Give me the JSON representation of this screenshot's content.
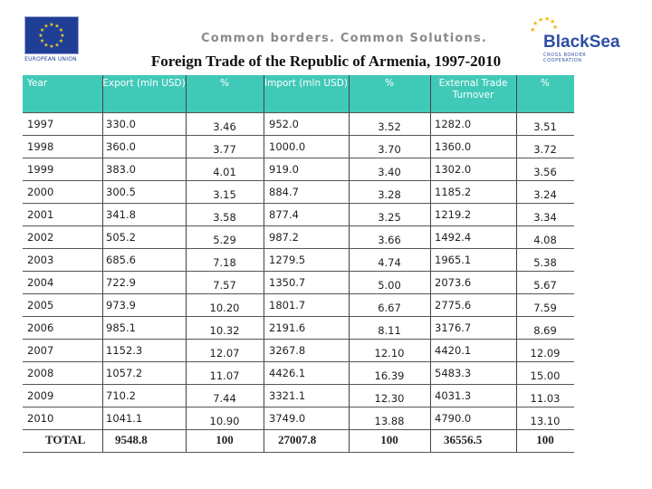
{
  "header": {
    "tagline": "Common borders. Common Solutions.",
    "title": "Foreign Trade of the Republic of Armenia, 1997-2010",
    "eu_logo_text": "EUROPEAN UNION",
    "program_logo": {
      "word_black": "Black",
      "word_sea": "Sea",
      "subtitle_1": "CROSS BORDER",
      "subtitle_2": "COOPERATION"
    }
  },
  "table": {
    "headers": [
      "Year",
      "Export (mln USD)",
      "%",
      "Import (mln USD)",
      "%",
      "External Trade Turnover",
      "%"
    ],
    "rows": [
      {
        "year": "1997",
        "export": "330.0",
        "export_pct": "3.46",
        "import": "952.0",
        "import_pct": "3.52",
        "turnover": "1282.0",
        "turnover_pct": "3.51"
      },
      {
        "year": "1998",
        "export": "360.0",
        "export_pct": "3.77",
        "import": "1000.0",
        "import_pct": "3.70",
        "turnover": "1360.0",
        "turnover_pct": "3.72"
      },
      {
        "year": "1999",
        "export": "383.0",
        "export_pct": "4.01",
        "import": "919.0",
        "import_pct": "3.40",
        "turnover": "1302.0",
        "turnover_pct": "3.56"
      },
      {
        "year": "2000",
        "export": "300.5",
        "export_pct": "3.15",
        "import": "884.7",
        "import_pct": "3.28",
        "turnover": "1185.2",
        "turnover_pct": "3.24"
      },
      {
        "year": "2001",
        "export": "341.8",
        "export_pct": "3.58",
        "import": "877.4",
        "import_pct": "3.25",
        "turnover": "1219.2",
        "turnover_pct": "3.34"
      },
      {
        "year": "2002",
        "export": "505.2",
        "export_pct": "5.29",
        "import": "987.2",
        "import_pct": "3.66",
        "turnover": "1492.4",
        "turnover_pct": "4.08"
      },
      {
        "year": "2003",
        "export": "685.6",
        "export_pct": "7.18",
        "import": "1279.5",
        "import_pct": "4.74",
        "turnover": "1965.1",
        "turnover_pct": "5.38"
      },
      {
        "year": "2004",
        "export": "722.9",
        "export_pct": "7.57",
        "import": "1350.7",
        "import_pct": "5.00",
        "turnover": "2073.6",
        "turnover_pct": "5.67"
      },
      {
        "year": "2005",
        "export": "973.9",
        "export_pct": "10.20",
        "import": "1801.7",
        "import_pct": "6.67",
        "turnover": "2775.6",
        "turnover_pct": "7.59"
      },
      {
        "year": "2006",
        "export": "985.1",
        "export_pct": "10.32",
        "import": "2191.6",
        "import_pct": "8.11",
        "turnover": "3176.7",
        "turnover_pct": "8.69"
      },
      {
        "year": "2007",
        "export": "1152.3",
        "export_pct": "12.07",
        "import": "3267.8",
        "import_pct": "12.10",
        "turnover": "4420.1",
        "turnover_pct": "12.09"
      },
      {
        "year": "2008",
        "export": "1057.2",
        "export_pct": "11.07",
        "import": "4426.1",
        "import_pct": "16.39",
        "turnover": "5483.3",
        "turnover_pct": "15.00"
      },
      {
        "year": "2009",
        "export": "710.2",
        "export_pct": "7.44",
        "import": "3321.1",
        "import_pct": "12.30",
        "turnover": "4031.3",
        "turnover_pct": "11.03"
      },
      {
        "year": "2010",
        "export": "1041.1",
        "export_pct": "10.90",
        "import": "3749.0",
        "import_pct": "13.88",
        "turnover": "4790.0",
        "turnover_pct": "13.10"
      }
    ],
    "total": {
      "label": "TOTAL",
      "export": "9548.8",
      "export_pct": "100",
      "import": "27007.8",
      "import_pct": "100",
      "turnover": "36556.5",
      "turnover_pct": "100"
    }
  },
  "colors": {
    "header_band": "#41c9b8",
    "eu_blue": "#1f3f97",
    "eu_star": "#f2d31b",
    "logo_blue": "#2d4fa3"
  }
}
